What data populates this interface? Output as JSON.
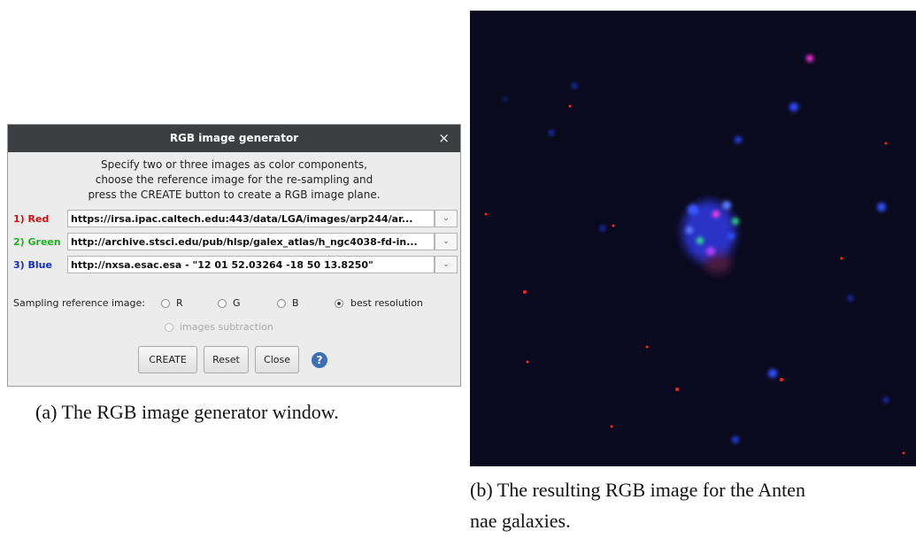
{
  "dialog": {
    "title": "RGB image generator",
    "close": "×",
    "instructions": [
      "Specify two or three images as color components,",
      "choose the reference image for the re-sampling and",
      "press the CREATE button to create a RGB image plane."
    ],
    "rows": [
      {
        "label": "1) Red",
        "url": "https://irsa.ipac.caltech.edu:443/data/LGA/images/arp244/ar..."
      },
      {
        "label": "2) Green",
        "url": "http://archive.stsci.edu/pub/hlsp/galex_atlas/h_ngc4038-fd-in..."
      },
      {
        "label": "3) Blue",
        "url": "http://nxsa.esac.esa - \"12 01 52.03264 -18 50 13.8250\""
      }
    ],
    "sampling_label": "Sampling reference image:",
    "options": [
      "R",
      "G",
      "B",
      "best resolution"
    ],
    "subtraction": "images subtraction",
    "buttons": [
      "CREATE",
      "Reset",
      "Close"
    ],
    "help": "?"
  },
  "captions": {
    "a": "(a) The RGB image generator window.",
    "b": [
      "(b) The resulting RGB image for the Anten",
      "nae galaxies."
    ]
  }
}
